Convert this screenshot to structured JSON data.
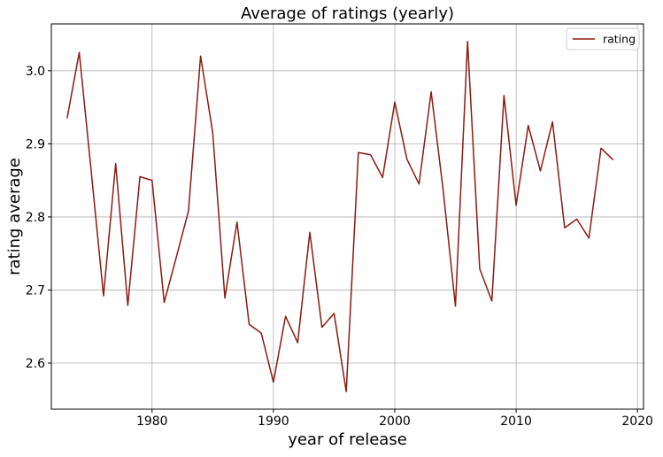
{
  "chart_data": {
    "type": "line",
    "title": "Average of ratings (yearly)",
    "xlabel": "year of release",
    "ylabel": "rating average",
    "xlim": [
      1971.7,
      2020.5
    ],
    "ylim": [
      2.537,
      3.064
    ],
    "x_ticks": [
      1980,
      1990,
      2000,
      2010,
      2020
    ],
    "x_tick_labels": [
      "1980",
      "1990",
      "2000",
      "2010",
      "2020"
    ],
    "y_ticks": [
      2.6,
      2.7,
      2.8,
      2.9,
      3.0
    ],
    "y_tick_labels": [
      "2.6",
      "2.7",
      "2.8",
      "2.9",
      "3.0"
    ],
    "grid": true,
    "legend": {
      "position": "top-right",
      "entries": [
        "rating"
      ]
    },
    "series": [
      {
        "name": "rating",
        "color": "#8b1a10",
        "x": [
          1973,
          1974,
          1975,
          1976,
          1977,
          1978,
          1979,
          1980,
          1981,
          1982,
          1983,
          1984,
          1985,
          1986,
          1987,
          1988,
          1989,
          1990,
          1991,
          1992,
          1993,
          1994,
          1995,
          1996,
          1997,
          1998,
          1999,
          2000,
          2001,
          2002,
          2003,
          2004,
          2005,
          2006,
          2007,
          2008,
          2009,
          2010,
          2011,
          2012,
          2013,
          2014,
          2015,
          2016,
          2017,
          2018
        ],
        "values": [
          2.935,
          3.025,
          2.86,
          2.692,
          2.873,
          2.679,
          2.855,
          2.85,
          2.683,
          2.745,
          2.808,
          3.02,
          2.915,
          2.689,
          2.793,
          2.653,
          2.641,
          2.574,
          2.664,
          2.628,
          2.779,
          2.649,
          2.668,
          2.561,
          2.888,
          2.885,
          2.854,
          2.957,
          2.879,
          2.845,
          2.971,
          2.835,
          2.678,
          3.04,
          2.729,
          2.685,
          2.966,
          2.816,
          2.925,
          2.863,
          2.93,
          2.785,
          2.797,
          2.771,
          2.894,
          2.878
        ]
      }
    ]
  }
}
